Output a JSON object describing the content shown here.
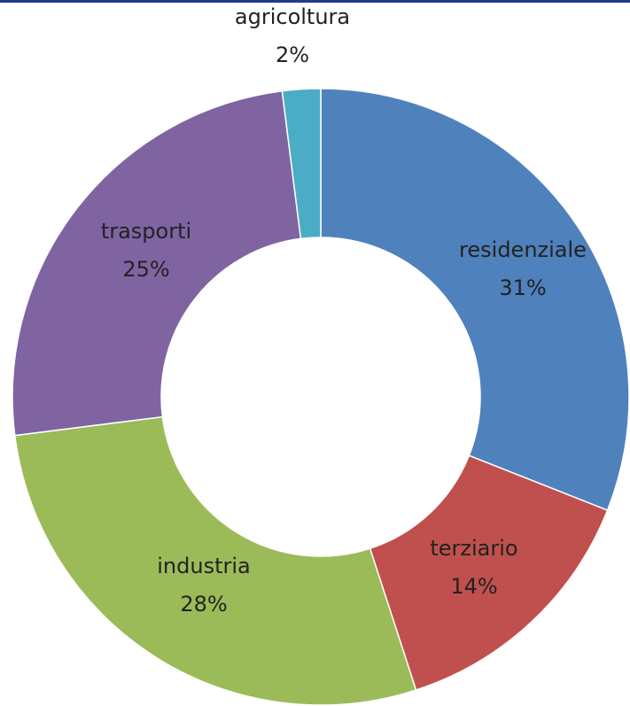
{
  "chart_data": {
    "type": "donut",
    "categories": [
      "residenziale",
      "terziario",
      "industria",
      "trasporti",
      "agricoltura"
    ],
    "values": [
      31,
      14,
      28,
      25,
      2
    ],
    "value_labels": [
      "31%",
      "14%",
      "28%",
      "25%",
      "2%"
    ],
    "colors": [
      "#4f81bd",
      "#c0504d",
      "#9bbb59",
      "#8064a2",
      "#4bacc6"
    ]
  }
}
